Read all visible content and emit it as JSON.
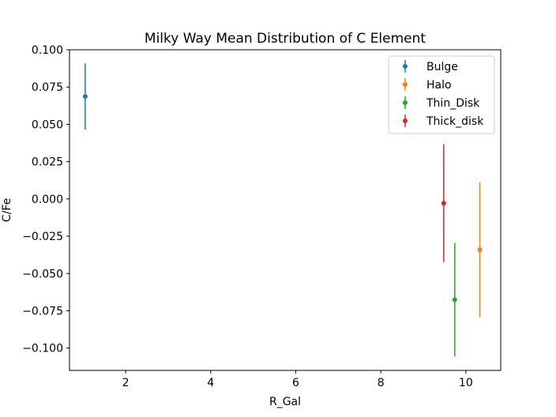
{
  "chart_data": {
    "type": "errorbar",
    "title": "Milky Way Mean Distribution of C Element",
    "xlabel": "R_Gal",
    "ylabel": "C/Fe",
    "xlim": [
      0.68,
      10.82
    ],
    "ylim": [
      -0.115,
      0.1
    ],
    "xticks": [
      2,
      4,
      6,
      8,
      10
    ],
    "yticks": [
      0.1,
      0.075,
      0.05,
      0.025,
      0.0,
      -0.025,
      -0.05,
      -0.075,
      -0.1
    ],
    "ytick_labels": [
      "0.100",
      "0.075",
      "0.050",
      "0.025",
      "0.000",
      "−0.025",
      "−0.050",
      "−0.075",
      "−0.100"
    ],
    "legend_position": "upper right",
    "series": [
      {
        "name": "Bulge",
        "color": "#1f77b4",
        "x": 1.05,
        "y": 0.0687,
        "yerr": 0.0222
      },
      {
        "name": "Halo",
        "color": "#ff7f0e",
        "x": 10.33,
        "y": -0.0341,
        "yerr": 0.0452
      },
      {
        "name": "Thin_Disk",
        "color": "#2ca02c",
        "x": 9.74,
        "y": -0.0676,
        "yerr": 0.0381
      },
      {
        "name": "Thick_disk",
        "color": "#d62728",
        "x": 9.48,
        "y": -0.0029,
        "yerr": 0.0395
      }
    ]
  }
}
